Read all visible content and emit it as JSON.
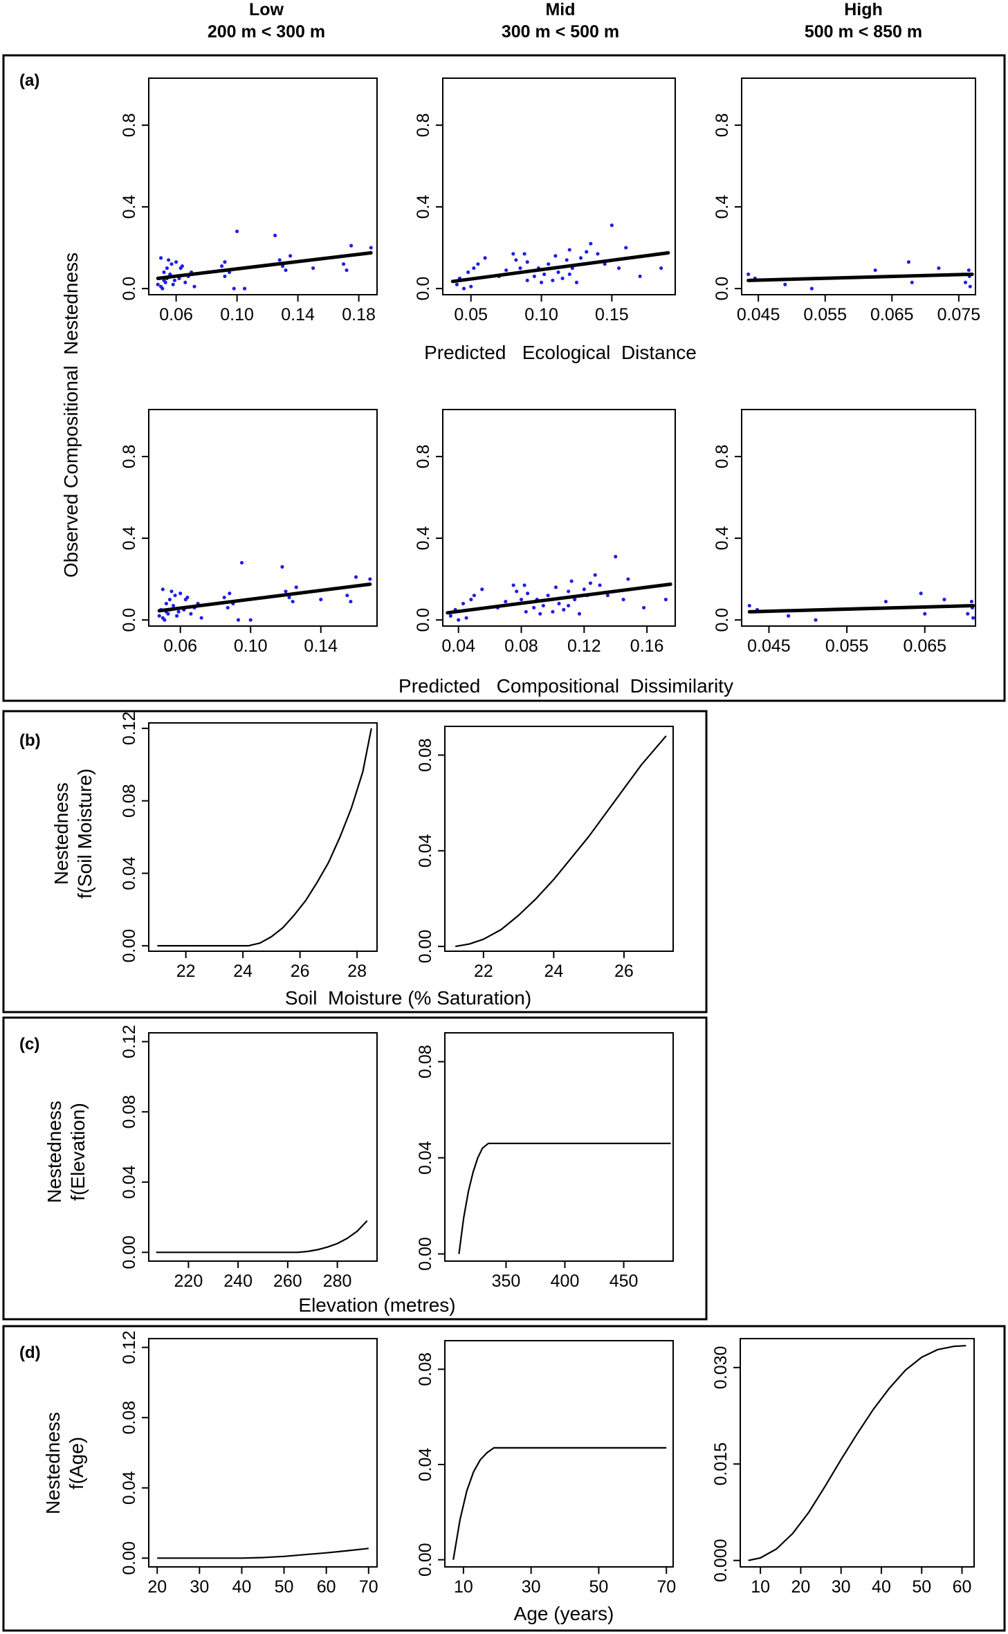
{
  "column_headers": [
    {
      "line1": "Low",
      "line2": "200 m < 300 m"
    },
    {
      "line1": "Mid",
      "line2": "300 m < 500 m"
    },
    {
      "line1": "High",
      "line2": "500 m < 850 m"
    }
  ],
  "sections": {
    "a": {
      "tag": "(a)",
      "ylabel": "Observed Compositional  Nestedness",
      "xlabel_top": "Predicted   Ecological  Distance",
      "xlabel_bottom": "Predicted   Compositional  Dissimilarity"
    },
    "b": {
      "tag": "(b)",
      "ylabel_line1": "Nestedness",
      "ylabel_line2": "f(Soil Moisture)",
      "xlabel": "Soil  Moisture (% Saturation)"
    },
    "c": {
      "tag": "(c)",
      "ylabel_line1": "Nestedness",
      "ylabel_line2": "f(Elevation)",
      "xlabel": "Elevation (metres)"
    },
    "d": {
      "tag": "(d)",
      "ylabel_line1": "Nestedness",
      "ylabel_line2": "f(Age)",
      "xlabel": "Age (years)"
    }
  },
  "colors": {
    "points": "#1f1fe6",
    "line": "#000000",
    "frame": "#000000"
  },
  "chart_data": [
    {
      "id": "a-eco-low",
      "type": "scatter",
      "xlim": [
        0.042,
        0.192
      ],
      "ylim": [
        -0.03,
        1.03
      ],
      "xticks": [
        "0.06",
        "0.10",
        "0.14",
        "0.18"
      ],
      "yticks": [
        "0.0",
        "0.4",
        "0.8"
      ],
      "x": [
        0.048,
        0.049,
        0.05,
        0.051,
        0.052,
        0.053,
        0.054,
        0.055,
        0.05,
        0.052,
        0.056,
        0.058,
        0.06,
        0.062,
        0.064,
        0.066,
        0.068,
        0.07,
        0.072,
        0.054,
        0.057,
        0.059,
        0.063,
        0.09,
        0.092,
        0.095,
        0.098,
        0.1,
        0.105,
        0.092,
        0.125,
        0.128,
        0.13,
        0.132,
        0.135,
        0.15,
        0.17,
        0.172,
        0.175,
        0.188
      ],
      "y": [
        0.02,
        0.05,
        0.15,
        0.0,
        0.08,
        0.03,
        0.1,
        0.14,
        0.01,
        0.04,
        0.07,
        0.02,
        0.13,
        0.05,
        0.11,
        0.03,
        0.06,
        0.08,
        0.01,
        0.05,
        0.12,
        0.04,
        0.1,
        0.11,
        0.06,
        0.08,
        0.0,
        0.28,
        0.0,
        0.13,
        0.26,
        0.14,
        0.11,
        0.09,
        0.16,
        0.1,
        0.12,
        0.09,
        0.21,
        0.2
      ],
      "fit": [
        [
          0.048,
          0.05
        ],
        [
          0.188,
          0.175
        ]
      ]
    },
    {
      "id": "a-eco-mid",
      "type": "scatter",
      "xlim": [
        0.03,
        0.195
      ],
      "ylim": [
        -0.03,
        1.03
      ],
      "xticks": [
        "0.05",
        "0.10",
        "0.15"
      ],
      "yticks": [
        "0.0",
        "0.4",
        "0.8"
      ],
      "x": [
        0.04,
        0.042,
        0.045,
        0.048,
        0.05,
        0.052,
        0.055,
        0.06,
        0.07,
        0.075,
        0.08,
        0.082,
        0.085,
        0.088,
        0.09,
        0.095,
        0.098,
        0.1,
        0.102,
        0.105,
        0.108,
        0.11,
        0.112,
        0.115,
        0.118,
        0.12,
        0.122,
        0.125,
        0.128,
        0.13,
        0.132,
        0.135,
        0.14,
        0.145,
        0.15,
        0.155,
        0.16,
        0.17,
        0.185,
        0.09,
        0.12
      ],
      "y": [
        0.02,
        0.05,
        0.0,
        0.08,
        0.01,
        0.1,
        0.12,
        0.15,
        0.06,
        0.09,
        0.17,
        0.14,
        0.1,
        0.17,
        0.04,
        0.06,
        0.1,
        0.03,
        0.07,
        0.12,
        0.04,
        0.16,
        0.08,
        0.05,
        0.14,
        0.19,
        0.1,
        0.03,
        0.15,
        0.12,
        0.18,
        0.22,
        0.17,
        0.12,
        0.31,
        0.1,
        0.2,
        0.06,
        0.1,
        0.13,
        0.07
      ],
      "fit": [
        [
          0.037,
          0.035
        ],
        [
          0.19,
          0.175
        ]
      ]
    },
    {
      "id": "a-eco-high",
      "type": "scatter",
      "xlim": [
        0.0425,
        0.0775
      ],
      "ylim": [
        -0.03,
        1.03
      ],
      "xticks": [
        "0.045",
        "0.055",
        "0.065",
        "0.075"
      ],
      "yticks": [
        "0.0",
        "0.4",
        "0.8"
      ],
      "x": [
        0.0435,
        0.0445,
        0.049,
        0.053,
        0.0625,
        0.0675,
        0.068,
        0.072,
        0.076,
        0.0765,
        0.0766,
        0.0767
      ],
      "y": [
        0.07,
        0.05,
        0.02,
        0.0,
        0.09,
        0.13,
        0.03,
        0.1,
        0.03,
        0.09,
        0.06,
        0.01
      ],
      "fit": [
        [
          0.0435,
          0.04
        ],
        [
          0.077,
          0.07
        ]
      ]
    },
    {
      "id": "a-comp-low",
      "type": "scatter",
      "xlim": [
        0.042,
        0.172
      ],
      "ylim": [
        -0.03,
        1.03
      ],
      "xticks": [
        "0.06",
        "0.10",
        "0.14"
      ],
      "yticks": [
        "0.0",
        "0.4",
        "0.8"
      ],
      "x": [
        0.048,
        0.049,
        0.05,
        0.051,
        0.052,
        0.053,
        0.054,
        0.055,
        0.05,
        0.052,
        0.056,
        0.058,
        0.06,
        0.062,
        0.064,
        0.066,
        0.068,
        0.07,
        0.072,
        0.054,
        0.057,
        0.059,
        0.063,
        0.085,
        0.087,
        0.09,
        0.093,
        0.095,
        0.1,
        0.088,
        0.118,
        0.12,
        0.122,
        0.124,
        0.126,
        0.14,
        0.155,
        0.157,
        0.16,
        0.168
      ],
      "y": [
        0.02,
        0.05,
        0.15,
        0.0,
        0.08,
        0.03,
        0.1,
        0.14,
        0.01,
        0.04,
        0.07,
        0.02,
        0.13,
        0.05,
        0.11,
        0.03,
        0.06,
        0.08,
        0.01,
        0.05,
        0.12,
        0.04,
        0.1,
        0.11,
        0.06,
        0.08,
        0.0,
        0.28,
        0.0,
        0.13,
        0.26,
        0.14,
        0.11,
        0.09,
        0.16,
        0.1,
        0.12,
        0.09,
        0.21,
        0.2
      ],
      "fit": [
        [
          0.048,
          0.045
        ],
        [
          0.168,
          0.175
        ]
      ]
    },
    {
      "id": "a-comp-mid",
      "type": "scatter",
      "xlim": [
        0.03,
        0.178
      ],
      "ylim": [
        -0.03,
        1.03
      ],
      "xticks": [
        "0.04",
        "0.08",
        "0.12",
        "0.16"
      ],
      "yticks": [
        "0.0",
        "0.4",
        "0.8"
      ],
      "x": [
        0.035,
        0.038,
        0.04,
        0.043,
        0.045,
        0.048,
        0.05,
        0.055,
        0.065,
        0.07,
        0.075,
        0.077,
        0.08,
        0.082,
        0.083,
        0.088,
        0.09,
        0.092,
        0.094,
        0.097,
        0.1,
        0.102,
        0.104,
        0.107,
        0.11,
        0.112,
        0.114,
        0.117,
        0.12,
        0.122,
        0.124,
        0.127,
        0.13,
        0.135,
        0.14,
        0.145,
        0.148,
        0.158,
        0.172,
        0.084,
        0.11
      ],
      "y": [
        0.02,
        0.05,
        0.0,
        0.08,
        0.01,
        0.1,
        0.12,
        0.15,
        0.06,
        0.09,
        0.17,
        0.14,
        0.1,
        0.17,
        0.04,
        0.06,
        0.1,
        0.03,
        0.07,
        0.12,
        0.04,
        0.16,
        0.08,
        0.05,
        0.14,
        0.19,
        0.1,
        0.03,
        0.15,
        0.12,
        0.18,
        0.22,
        0.17,
        0.12,
        0.31,
        0.1,
        0.2,
        0.06,
        0.1,
        0.13,
        0.07
      ],
      "fit": [
        [
          0.033,
          0.035
        ],
        [
          0.175,
          0.175
        ]
      ]
    },
    {
      "id": "a-comp-high",
      "type": "scatter",
      "xlim": [
        0.0415,
        0.0715
      ],
      "ylim": [
        -0.03,
        1.03
      ],
      "xticks": [
        "0.045",
        "0.055",
        "0.065"
      ],
      "yticks": [
        "0.0",
        "0.4",
        "0.8"
      ],
      "x": [
        0.0425,
        0.0435,
        0.0475,
        0.051,
        0.06,
        0.0645,
        0.065,
        0.0675,
        0.0705,
        0.071,
        0.0711,
        0.0712
      ],
      "y": [
        0.07,
        0.05,
        0.02,
        0.0,
        0.09,
        0.13,
        0.03,
        0.1,
        0.03,
        0.09,
        0.06,
        0.01
      ],
      "fit": [
        [
          0.0425,
          0.04
        ],
        [
          0.0712,
          0.07
        ]
      ]
    },
    {
      "id": "b-low",
      "type": "line",
      "xlim": [
        20.7,
        28.7
      ],
      "ylim": [
        -0.003,
        0.123
      ],
      "xticks": [
        "22",
        "24",
        "26",
        "28"
      ],
      "yticks": [
        "0.00",
        "0.04",
        "0.08",
        "0.12"
      ],
      "x": [
        21,
        22,
        23,
        24,
        24.2,
        24.6,
        25,
        25.4,
        25.8,
        26.2,
        26.6,
        27,
        27.4,
        27.8,
        28.2,
        28.5
      ],
      "y": [
        0,
        0,
        0,
        0,
        0,
        0.0015,
        0.005,
        0.01,
        0.017,
        0.025,
        0.035,
        0.046,
        0.06,
        0.076,
        0.096,
        0.12
      ]
    },
    {
      "id": "b-mid",
      "type": "line",
      "xlim": [
        20.9,
        27.4
      ],
      "ylim": [
        -0.002,
        0.092
      ],
      "xticks": [
        "22",
        "24",
        "26"
      ],
      "yticks": [
        "0.00",
        "0.04",
        "0.08"
      ],
      "x": [
        21.2,
        21.6,
        22,
        22.5,
        23,
        23.5,
        24,
        24.5,
        25,
        25.5,
        26,
        26.5,
        27.2
      ],
      "y": [
        0,
        0.001,
        0.003,
        0.007,
        0.013,
        0.02,
        0.028,
        0.037,
        0.046,
        0.056,
        0.066,
        0.076,
        0.088
      ]
    },
    {
      "id": "c-low",
      "type": "line",
      "xlim": [
        204,
        296
      ],
      "ylim": [
        -0.005,
        0.125
      ],
      "xticks": [
        "220",
        "240",
        "260",
        "280"
      ],
      "yticks": [
        "0.00",
        "0.04",
        "0.08",
        "0.12"
      ],
      "x": [
        207,
        220,
        240,
        260,
        264,
        268,
        272,
        276,
        280,
        284,
        288,
        292
      ],
      "y": [
        0,
        0,
        0,
        0,
        0,
        0.0005,
        0.0015,
        0.003,
        0.005,
        0.008,
        0.012,
        0.018
      ]
    },
    {
      "id": "c-mid",
      "type": "line",
      "xlim": [
        298,
        492
      ],
      "ylim": [
        -0.003,
        0.092
      ],
      "xticks": [
        "350",
        "400",
        "450"
      ],
      "yticks": [
        "0.00",
        "0.04",
        "0.08"
      ],
      "x": [
        310,
        314,
        318,
        322,
        326,
        330,
        335,
        340,
        350,
        400,
        450,
        490
      ],
      "y": [
        0,
        0.015,
        0.026,
        0.034,
        0.04,
        0.044,
        0.046,
        0.046,
        0.046,
        0.046,
        0.046,
        0.046
      ]
    },
    {
      "id": "d-low",
      "type": "line",
      "xlim": [
        18,
        72
      ],
      "ylim": [
        -0.005,
        0.125
      ],
      "xticks": [
        "20",
        "30",
        "40",
        "50",
        "60",
        "70"
      ],
      "yticks": [
        "0.00",
        "0.04",
        "0.08",
        "0.12"
      ],
      "x": [
        20,
        30,
        40,
        45,
        50,
        55,
        60,
        65,
        70
      ],
      "y": [
        0,
        0,
        0,
        0.0003,
        0.001,
        0.002,
        0.003,
        0.0042,
        0.0055
      ]
    },
    {
      "id": "d-mid",
      "type": "line",
      "xlim": [
        4.5,
        72
      ],
      "ylim": [
        -0.003,
        0.092
      ],
      "xticks": [
        "10",
        "30",
        "50",
        "70"
      ],
      "yticks": [
        "0.00",
        "0.04",
        "0.08"
      ],
      "x": [
        7,
        9,
        11,
        13,
        15,
        17,
        19,
        21,
        25,
        30,
        50,
        70
      ],
      "y": [
        0,
        0.017,
        0.029,
        0.037,
        0.042,
        0.045,
        0.047,
        0.047,
        0.047,
        0.047,
        0.047,
        0.047
      ]
    },
    {
      "id": "d-high",
      "type": "line",
      "xlim": [
        5,
        63
      ],
      "ylim": [
        -0.001,
        0.0345
      ],
      "xticks": [
        "10",
        "20",
        "30",
        "40",
        "50",
        "60"
      ],
      "yticks": [
        "0.000",
        "0.015",
        "0.030"
      ],
      "x": [
        7,
        10,
        14,
        18,
        22,
        26,
        30,
        34,
        38,
        42,
        46,
        50,
        54,
        58,
        61
      ],
      "y": [
        0,
        0.0004,
        0.0018,
        0.0042,
        0.0075,
        0.0115,
        0.0157,
        0.0197,
        0.0235,
        0.0268,
        0.0296,
        0.0316,
        0.0328,
        0.0333,
        0.0334
      ]
    }
  ]
}
